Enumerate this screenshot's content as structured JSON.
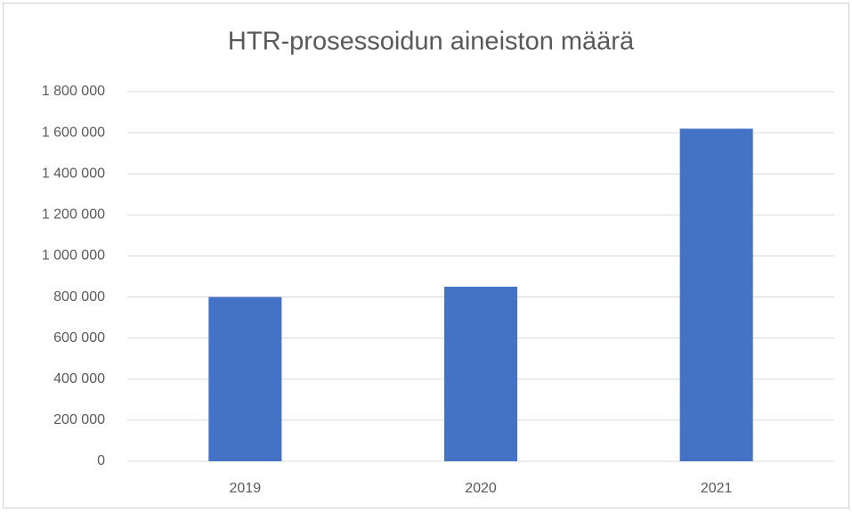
{
  "chart_data": {
    "type": "bar",
    "title": "HTR-prosessoidun aineiston määrä",
    "categories": [
      "2019",
      "2020",
      "2021"
    ],
    "values": [
      800000,
      850000,
      1620000
    ],
    "color": "#4472c4",
    "ylim": [
      0,
      1800000
    ],
    "yticks": [
      0,
      {
        "value": 200000,
        "label": "200 000"
      },
      {
        "value": 400000,
        "label": "400 000"
      },
      {
        "value": 600000,
        "label": "600 000"
      },
      {
        "value": 800000,
        "label": "800 000"
      },
      {
        "value": 1000000,
        "label": "1 000 000"
      },
      {
        "value": 1200000,
        "label": "1 200 000"
      },
      {
        "value": 1400000,
        "label": "1 400 000"
      },
      {
        "value": 1600000,
        "label": "1 600 000"
      },
      {
        "value": 1800000,
        "label": "1 800 000"
      }
    ],
    "grid": true
  }
}
